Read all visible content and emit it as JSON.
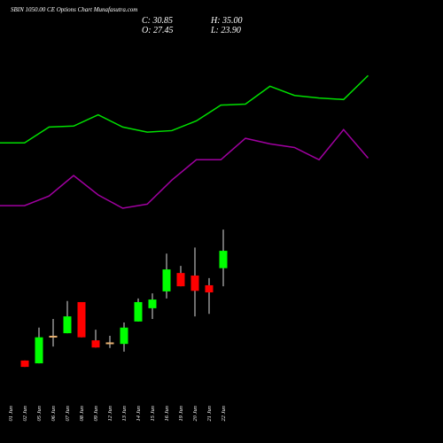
{
  "chart_data": {
    "type": "candlestick",
    "title": "SBIN 1050.00 CE Options Chart Munafasutra.com",
    "ohlc_labels": [
      "C: 30.85",
      "H: 35.00",
      "O: 27.45",
      "L: 23.90"
    ],
    "categories": [
      "01 Jun",
      "02 Jun",
      "05 Jun",
      "06 Jun",
      "07 Jun",
      "08 Jun",
      "09 Jun",
      "12 Jun",
      "13 Jun",
      "14 Jun",
      "15 Jun",
      "16 Jun",
      "19 Jun",
      "20 Jun",
      "21 Jun",
      "22 Jun"
    ],
    "open": [
      null,
      9.35,
      8.8,
      14.0,
      14.7,
      20.8,
      13.3,
      12.8,
      12.6,
      17.0,
      19.6,
      22.9,
      26.5,
      26.0,
      24.1,
      27.45
    ],
    "high": [
      null,
      9.35,
      15.8,
      17.5,
      21.0,
      20.8,
      15.4,
      14.2,
      16.8,
      21.5,
      22.5,
      30.3,
      27.9,
      31.5,
      25.5,
      35.0
    ],
    "low": [
      null,
      8.1,
      8.8,
      12.1,
      14.7,
      13.9,
      11.9,
      11.8,
      11.1,
      17.0,
      17.5,
      21.5,
      23.9,
      18.0,
      18.5,
      23.9
    ],
    "close": [
      null,
      8.1,
      13.9,
      14.2,
      18.0,
      13.9,
      11.9,
      12.9,
      15.8,
      20.8,
      21.3,
      27.2,
      23.9,
      23.0,
      22.7,
      30.85
    ],
    "up_color": "#00ff00",
    "down_color": "#ff0000",
    "flat_color": "#e8b070",
    "lines": [
      {
        "color": "#00e000",
        "values": [
          52.0,
          52.0,
          55.1,
          55.3,
          57.5,
          55.1,
          54.1,
          54.4,
          56.3,
          59.4,
          59.6,
          63.1,
          61.3,
          60.8,
          60.5,
          65.2
        ]
      },
      {
        "color": "#a000a0",
        "values": [
          39.7,
          39.7,
          41.6,
          45.6,
          41.8,
          39.2,
          40.0,
          44.7,
          48.7,
          48.7,
          52.9,
          51.8,
          51.1,
          48.7,
          54.6,
          49.0
        ]
      }
    ],
    "ylim": [
      1,
      80
    ]
  }
}
